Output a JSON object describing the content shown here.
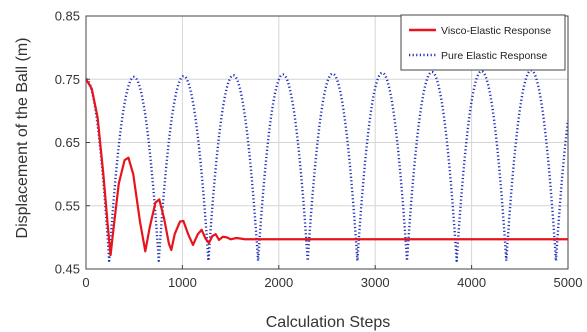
{
  "chart_data": {
    "type": "line",
    "title": "",
    "xlabel": "Calculation Steps",
    "ylabel": "Displacement of the Ball (m)",
    "xlim": [
      0,
      5000
    ],
    "ylim": [
      0.45,
      0.85
    ],
    "x_ticks": [
      0,
      1000,
      2000,
      3000,
      4000,
      5000
    ],
    "x_tick_labels": [
      "0",
      "1000",
      "2000",
      "3000",
      "4000",
      "5000"
    ],
    "y_ticks": [
      0.45,
      0.55,
      0.65,
      0.75,
      0.85
    ],
    "y_tick_labels": [
      "0.45",
      "0.55",
      "0.65",
      "0.75",
      "0.85"
    ],
    "grid": true,
    "legend_position": "top-right",
    "series": [
      {
        "name": "Visco-Elastic Response",
        "color": "#e8141c",
        "style": "solid",
        "points": [
          [
            0,
            0.75
          ],
          [
            60,
            0.735
          ],
          [
            120,
            0.69
          ],
          [
            180,
            0.6
          ],
          [
            225,
            0.52
          ],
          [
            255,
            0.472
          ],
          [
            290,
            0.52
          ],
          [
            340,
            0.585
          ],
          [
            400,
            0.622
          ],
          [
            440,
            0.626
          ],
          [
            490,
            0.6
          ],
          [
            560,
            0.525
          ],
          [
            615,
            0.478
          ],
          [
            660,
            0.515
          ],
          [
            720,
            0.555
          ],
          [
            760,
            0.56
          ],
          [
            810,
            0.53
          ],
          [
            860,
            0.49
          ],
          [
            885,
            0.48
          ],
          [
            920,
            0.505
          ],
          [
            975,
            0.525
          ],
          [
            1010,
            0.526
          ],
          [
            1060,
            0.505
          ],
          [
            1110,
            0.488
          ],
          [
            1160,
            0.505
          ],
          [
            1200,
            0.512
          ],
          [
            1240,
            0.498
          ],
          [
            1275,
            0.491
          ],
          [
            1310,
            0.502
          ],
          [
            1345,
            0.505
          ],
          [
            1380,
            0.496
          ],
          [
            1420,
            0.501
          ],
          [
            1460,
            0.5
          ],
          [
            1500,
            0.497
          ],
          [
            1560,
            0.499
          ],
          [
            1650,
            0.497
          ],
          [
            1750,
            0.497
          ],
          [
            2500,
            0.497
          ],
          [
            3500,
            0.497
          ],
          [
            4500,
            0.497
          ],
          [
            5000,
            0.497
          ]
        ]
      },
      {
        "name": "Pure Elastic Response",
        "color": "#1f2fb8",
        "style": "dotted",
        "cycle": {
          "start": 0,
          "start_value": 0.75,
          "first_trough": 240,
          "period": 515,
          "floor": 0.463,
          "peak_start": 0.753,
          "peak_end": 0.765
        }
      }
    ]
  }
}
